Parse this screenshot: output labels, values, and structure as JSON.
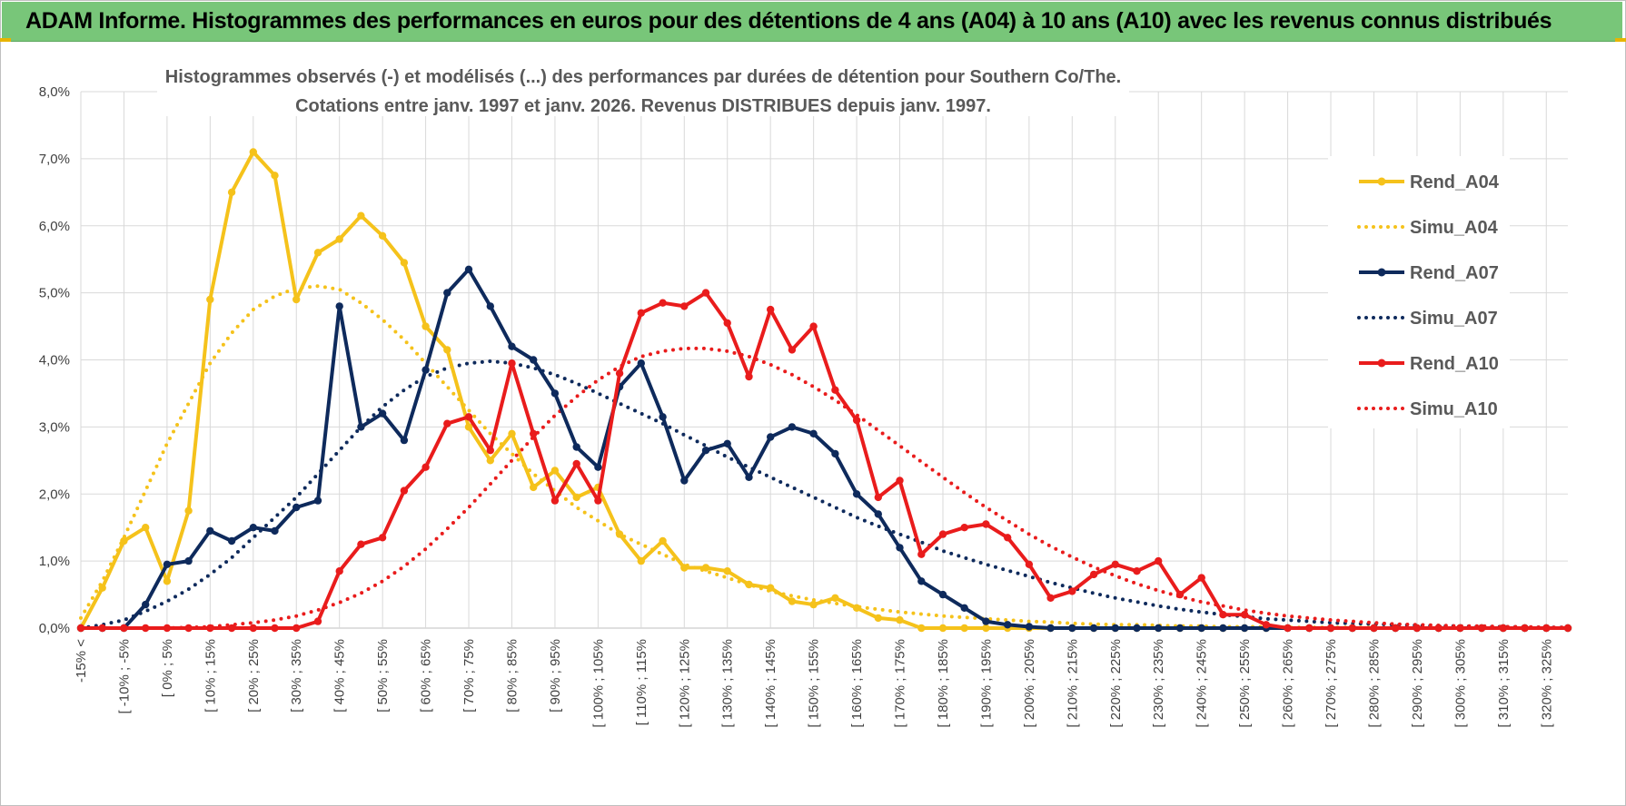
{
  "header": {
    "title": "ADAM Informe. Histogrammes des performances en euros pour des détentions de 4 ans (A04) à 10 ans (A10) avec les revenus connus distribués"
  },
  "colors": {
    "header_bg": "#78c679",
    "A04": "#f5c21b",
    "A07": "#0e2a5c",
    "A10": "#e91c1c",
    "grid": "#d9d9d9"
  },
  "chart_data": {
    "type": "line",
    "title_line1": "Histogrammes observés (-) et modélisés (...) des performances par durées de détention pour Southern Co/The.",
    "title_line2": "Cotations entre janv. 1997 et janv. 2026. Revenus DISTRIBUES depuis janv. 1997.",
    "y_ticks": [
      "0,0%",
      "1,0%",
      "2,0%",
      "3,0%",
      "4,0%",
      "5,0%",
      "6,0%",
      "7,0%",
      "8,0%"
    ],
    "ylim": [
      0,
      8
    ],
    "x_labels": [
      "-15% <",
      "[ -10% ; -5%",
      "[ 0% ; 5%",
      "[ 10% ; 15%",
      "[ 20% ; 25%",
      "[ 30% ; 35%",
      "[ 40% ; 45%",
      "[ 50% ; 55%",
      "[ 60% ; 65%",
      "[ 70% ; 75%",
      "[ 80% ; 85%",
      "[ 90% ; 95%",
      "[ 100% ; 105%",
      "[ 110% ; 115%",
      "[ 120% ; 125%",
      "[ 130% ; 135%",
      "[ 140% ; 145%",
      "[ 150% ; 155%",
      "[ 160% ; 165%",
      "[ 170% ; 175%",
      "[ 180% ; 185%",
      "[ 190% ; 195%",
      "[ 200% ; 205%",
      "[ 210% ; 215%",
      "[ 220% ; 225%",
      "[ 230% ; 235%",
      "[ 240% ; 245%",
      "[ 250% ; 255%",
      "[ 260% ; 265%",
      "[ 270% ; 275%",
      "[ 280% ; 285%",
      "[ 290% ; 295%",
      "[ 300% ; 305%",
      "[ 310% ; 315%",
      "[ 320% ; 325%"
    ],
    "n_categories": 70,
    "series": [
      {
        "name": "Rend_A04",
        "style": "solid",
        "color": "#f5c21b",
        "values": [
          0.0,
          0.6,
          1.3,
          1.5,
          0.7,
          1.75,
          4.9,
          6.5,
          7.1,
          6.75,
          4.9,
          5.6,
          5.8,
          6.15,
          5.85,
          5.45,
          4.5,
          4.15,
          3.0,
          2.5,
          2.9,
          2.1,
          2.35,
          1.95,
          2.1,
          1.4,
          1.0,
          1.3,
          0.9,
          0.9,
          0.85,
          0.65,
          0.6,
          0.4,
          0.35,
          0.45,
          0.3,
          0.15,
          0.12,
          0.0,
          0.0,
          0.0,
          0.0,
          0.0,
          0.0,
          0.0,
          0.0,
          0.0,
          0.0,
          0.0,
          0.0,
          0.0,
          0.0,
          0.0,
          0.0,
          0.0,
          0.0,
          0.0,
          0.0,
          0.0,
          0.0,
          0.0,
          0.0,
          0.0,
          0.0,
          0.0,
          0.0,
          0.0,
          0.0,
          0.0
        ]
      },
      {
        "name": "Simu_A04",
        "style": "dotted",
        "color": "#f5c21b",
        "values": [
          0.15,
          0.7,
          1.35,
          2.05,
          2.75,
          3.35,
          3.95,
          4.4,
          4.75,
          4.95,
          5.07,
          5.1,
          5.05,
          4.85,
          4.6,
          4.3,
          3.95,
          3.6,
          3.25,
          2.9,
          2.6,
          2.3,
          2.05,
          1.8,
          1.6,
          1.4,
          1.25,
          1.1,
          0.95,
          0.85,
          0.75,
          0.65,
          0.55,
          0.48,
          0.42,
          0.37,
          0.32,
          0.28,
          0.24,
          0.21,
          0.18,
          0.16,
          0.14,
          0.12,
          0.1,
          0.09,
          0.07,
          0.06,
          0.05,
          0.05,
          0.04,
          0.03,
          0.03,
          0.02,
          0.02,
          0.02,
          0.01,
          0.01,
          0.01,
          0.01,
          0.01,
          0.0,
          0.0,
          0.0,
          0.0,
          0.0,
          0.0,
          0.0,
          0.0,
          0.0
        ]
      },
      {
        "name": "Rend_A07",
        "style": "solid",
        "color": "#0e2a5c",
        "values": [
          0.0,
          0.0,
          0.0,
          0.35,
          0.95,
          1.0,
          1.45,
          1.3,
          1.5,
          1.45,
          1.8,
          1.9,
          4.8,
          3.0,
          3.2,
          2.8,
          3.85,
          5.0,
          5.35,
          4.8,
          4.2,
          4.0,
          3.5,
          2.7,
          2.4,
          3.6,
          3.95,
          3.15,
          2.2,
          2.65,
          2.75,
          2.25,
          2.85,
          3.0,
          2.9,
          2.6,
          2.0,
          1.7,
          1.2,
          0.7,
          0.5,
          0.3,
          0.1,
          0.05,
          0.02,
          0.0,
          0.0,
          0.0,
          0.0,
          0.0,
          0.0,
          0.0,
          0.0,
          0.0,
          0.0,
          0.0,
          0.0,
          0.0,
          0.0,
          0.0,
          0.0,
          0.0,
          0.0,
          0.0,
          0.0,
          0.0,
          0.0,
          0.0,
          0.0,
          0.0
        ]
      },
      {
        "name": "Simu_A07",
        "style": "dotted",
        "color": "#0e2a5c",
        "values": [
          0.0,
          0.05,
          0.12,
          0.25,
          0.4,
          0.58,
          0.8,
          1.05,
          1.35,
          1.65,
          1.95,
          2.3,
          2.65,
          3.0,
          3.3,
          3.55,
          3.75,
          3.88,
          3.95,
          3.98,
          3.95,
          3.88,
          3.78,
          3.65,
          3.5,
          3.35,
          3.2,
          3.05,
          2.88,
          2.72,
          2.55,
          2.4,
          2.25,
          2.1,
          1.95,
          1.8,
          1.65,
          1.52,
          1.4,
          1.28,
          1.15,
          1.05,
          0.95,
          0.86,
          0.77,
          0.68,
          0.6,
          0.52,
          0.45,
          0.39,
          0.33,
          0.28,
          0.24,
          0.2,
          0.17,
          0.14,
          0.12,
          0.1,
          0.08,
          0.07,
          0.06,
          0.05,
          0.04,
          0.03,
          0.03,
          0.02,
          0.02,
          0.01,
          0.01,
          0.01
        ]
      },
      {
        "name": "Rend_A10",
        "style": "solid",
        "color": "#e91c1c",
        "values": [
          0.0,
          0.0,
          0.0,
          0.0,
          0.0,
          0.0,
          0.0,
          0.0,
          0.0,
          0.0,
          0.0,
          0.1,
          0.85,
          1.25,
          1.35,
          2.05,
          2.4,
          3.05,
          3.15,
          2.65,
          3.95,
          2.9,
          1.9,
          2.45,
          1.9,
          3.8,
          4.7,
          4.85,
          4.8,
          5.0,
          4.55,
          3.75,
          4.75,
          4.15,
          4.5,
          3.55,
          3.1,
          1.95,
          2.2,
          1.1,
          1.4,
          1.5,
          1.55,
          1.35,
          0.95,
          0.45,
          0.55,
          0.8,
          0.95,
          0.85,
          1.0,
          0.5,
          0.75,
          0.2,
          0.2,
          0.05,
          0.0,
          0.0,
          0.0,
          0.0,
          0.0,
          0.0,
          0.0,
          0.0,
          0.0,
          0.0,
          0.0,
          0.0,
          0.0,
          0.0
        ]
      },
      {
        "name": "Simu_A10",
        "style": "dotted",
        "color": "#e91c1c",
        "values": [
          0.0,
          0.0,
          0.0,
          0.0,
          0.0,
          0.01,
          0.02,
          0.05,
          0.08,
          0.12,
          0.18,
          0.27,
          0.38,
          0.52,
          0.7,
          0.92,
          1.18,
          1.48,
          1.8,
          2.15,
          2.5,
          2.85,
          3.17,
          3.45,
          3.7,
          3.9,
          4.05,
          4.13,
          4.17,
          4.17,
          4.13,
          4.05,
          3.93,
          3.78,
          3.6,
          3.4,
          3.18,
          2.95,
          2.72,
          2.48,
          2.25,
          2.02,
          1.8,
          1.6,
          1.4,
          1.22,
          1.06,
          0.91,
          0.78,
          0.66,
          0.56,
          0.47,
          0.39,
          0.33,
          0.27,
          0.22,
          0.18,
          0.15,
          0.12,
          0.1,
          0.08,
          0.06,
          0.05,
          0.04,
          0.03,
          0.03,
          0.02,
          0.02,
          0.01,
          0.01
        ]
      }
    ],
    "legend": [
      "Rend_A04",
      "Simu_A04",
      "Rend_A07",
      "Simu_A07",
      "Rend_A10",
      "Simu_A10"
    ],
    "legend_position": "right",
    "grid": true
  }
}
